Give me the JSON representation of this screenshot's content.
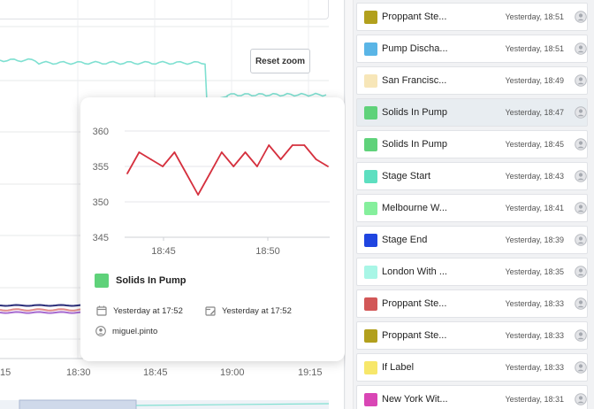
{
  "chart_panel": {
    "reset_zoom_label": "Reset zoom",
    "x_ticks": [
      "15",
      "18:30",
      "18:45",
      "19:00",
      "19:15"
    ],
    "series_colors": [
      "#7fe0d1",
      "#2b2e7a",
      "#a76bd0",
      "#e08b8b"
    ]
  },
  "popover": {
    "chart_data": {
      "type": "line",
      "x": [
        "18:43",
        "18:44",
        "18:45",
        "18:46",
        "18:47",
        "18:48",
        "18:49",
        "18:50",
        "18:51",
        "18:52",
        "18:53",
        "18:54",
        "18:55",
        "18:56",
        "18:57",
        "18:58",
        "18:59",
        "19:00"
      ],
      "values": [
        354,
        357,
        356,
        355,
        357,
        354,
        351,
        354,
        357,
        355,
        357,
        355,
        358,
        356,
        358,
        358,
        356,
        355
      ],
      "ylim": [
        345,
        360
      ],
      "yticks": [
        "360",
        "355",
        "350",
        "345"
      ],
      "xticks": [
        "18:45",
        "18:50"
      ],
      "line_color": "#d5303e"
    },
    "series": {
      "label": "Solids In Pump",
      "color": "#5fd27a"
    },
    "created": "Yesterday at 17:52",
    "edited": "Yesterday at 17:52",
    "user": "miguel.pinto",
    "icons": {
      "created": "calendar-icon",
      "edited": "edit-calendar-icon",
      "user": "user-icon"
    }
  },
  "list": {
    "items": [
      {
        "label": "Proppant Ste...",
        "time": "Yesterday, 18:51",
        "color": "#b2a01d"
      },
      {
        "label": "Pump Discha...",
        "time": "Yesterday, 18:51",
        "color": "#5ab5e6"
      },
      {
        "label": "San Francisc...",
        "time": "Yesterday, 18:49",
        "color": "#f7e6b8"
      },
      {
        "label": "Solids In Pump",
        "time": "Yesterday, 18:47",
        "color": "#5fd27a",
        "selected": true
      },
      {
        "label": "Solids In Pump",
        "time": "Yesterday, 18:45",
        "color": "#5fd27a"
      },
      {
        "label": "Stage Start",
        "time": "Yesterday, 18:43",
        "color": "#5ddfc0"
      },
      {
        "label": "Melbourne W...",
        "time": "Yesterday, 18:41",
        "color": "#85ef9c"
      },
      {
        "label": "Stage End",
        "time": "Yesterday, 18:39",
        "color": "#1f45e0"
      },
      {
        "label": "London With ...",
        "time": "Yesterday, 18:35",
        "color": "#a8f6e6"
      },
      {
        "label": "Proppant Ste...",
        "time": "Yesterday, 18:33",
        "color": "#d25757"
      },
      {
        "label": "Proppant Ste...",
        "time": "Yesterday, 18:33",
        "color": "#b2a01d"
      },
      {
        "label": "If Label",
        "time": "Yesterday, 18:33",
        "color": "#f7e76a"
      },
      {
        "label": "New York Wit...",
        "time": "Yesterday, 18:31",
        "color": "#d946b5"
      }
    ]
  }
}
